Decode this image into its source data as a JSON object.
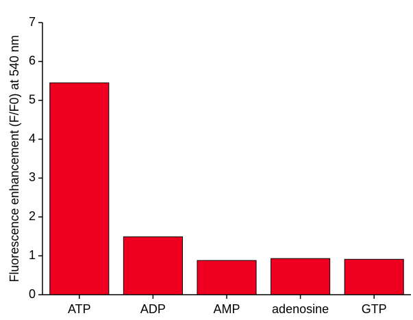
{
  "chart_data": {
    "type": "bar",
    "y_label": "Fluorescence enhancement (F/F0) at 540 nm",
    "categories": [
      "ATP",
      "ADP",
      "AMP",
      "adenosine",
      "GTP"
    ],
    "values": [
      5.45,
      1.49,
      0.88,
      0.93,
      0.91
    ],
    "color": "#f00020",
    "ylim": [
      0,
      7
    ],
    "yticks": [
      0,
      1,
      2,
      3,
      4,
      5,
      6,
      7
    ],
    "grid": false
  }
}
